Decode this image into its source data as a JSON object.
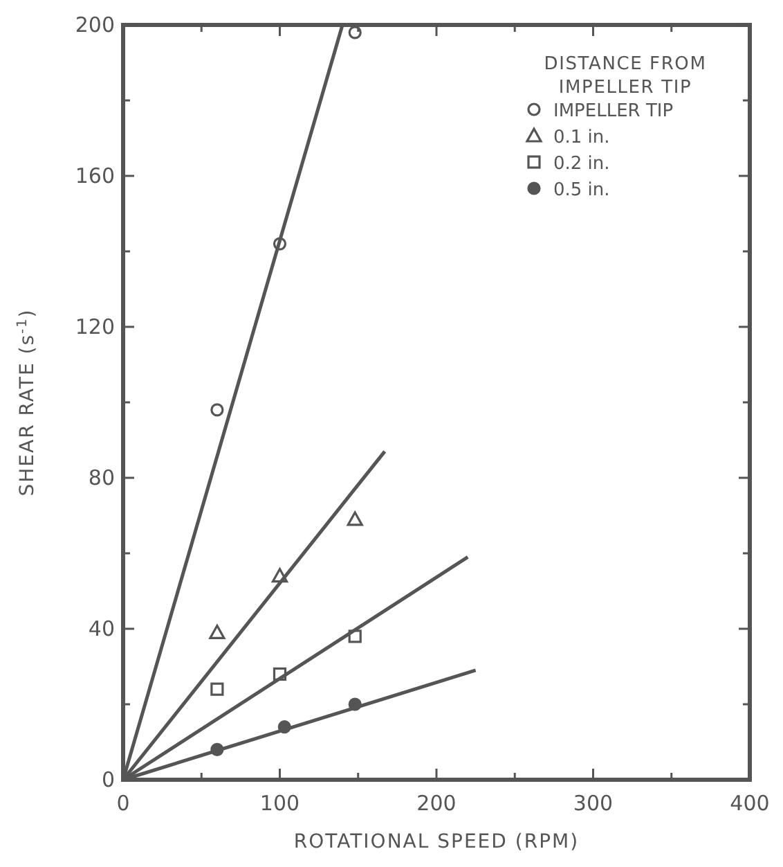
{
  "chart_data": {
    "type": "scatter",
    "xlabel": "ROTATIONAL SPEED (RPM)",
    "ylabel": "SHEAR RATE (s$^{-1}$)",
    "legend_title": "DISTANCE FROM IMPELLER TIP",
    "xlim": [
      0,
      400
    ],
    "ylim": [
      0,
      200
    ],
    "xticks": [
      0,
      {
        "value": 50,
        "label": null
      },
      100,
      {
        "value": 150,
        "label": null
      },
      200,
      {
        "value": 250,
        "label": null
      },
      300,
      {
        "value": 350,
        "label": null
      },
      400
    ],
    "yticks": [
      0,
      {
        "value": 20,
        "label": null
      },
      40,
      {
        "value": 60,
        "label": null
      },
      80,
      {
        "value": 100,
        "label": null
      },
      120,
      {
        "value": 140,
        "label": null
      },
      160,
      {
        "value": 180,
        "label": null
      },
      200
    ],
    "grid": false,
    "legend": "top right",
    "series": [
      {
        "name": "IMPELLER TIP",
        "color": "#555555",
        "marker": "circle",
        "x": [
          60,
          100,
          148
        ],
        "values": [
          98,
          142,
          198
        ]
      },
      {
        "name": "0.1 in.",
        "color": "#555555",
        "marker": "triangle",
        "x": [
          60,
          100,
          148
        ],
        "values": [
          39,
          54,
          69
        ]
      },
      {
        "name": "0.2 in.",
        "color": "#555555",
        "marker": "square",
        "x": [
          60,
          100,
          148
        ],
        "values": [
          24,
          28,
          38
        ]
      },
      {
        "name": "0.5 in.",
        "color": "#555555",
        "marker": "circle",
        "x": [
          60,
          103,
          148
        ],
        "values": [
          8,
          14,
          20
        ]
      },
      {
        "type": "line",
        "color": "#555555",
        "marker": "none",
        "line_style": "solid",
        "x": [
          0,
          140
        ],
        "values": [
          0,
          200
        ]
      },
      {
        "type": "line",
        "color": "#555555",
        "marker": "none",
        "line_style": "solid",
        "x": [
          0,
          167
        ],
        "values": [
          0,
          87
        ]
      },
      {
        "type": "line",
        "color": "#555555",
        "marker": "none",
        "line_style": "solid",
        "x": [
          0,
          220
        ],
        "values": [
          0,
          59
        ]
      },
      {
        "type": "line",
        "color": "#555555",
        "marker": "none",
        "line_style": "solid",
        "x": [
          0,
          225
        ],
        "values": [
          0,
          29
        ]
      }
    ]
  }
}
